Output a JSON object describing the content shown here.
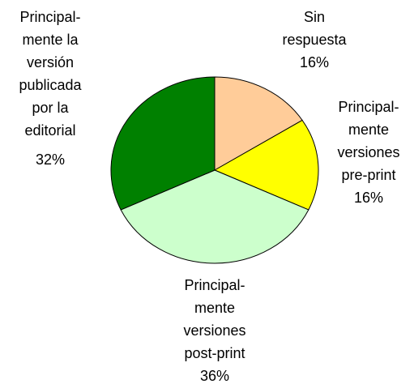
{
  "chart_data": {
    "type": "pie",
    "categories": [
      [
        "Sin",
        "respuesta"
      ],
      [
        "Principal-",
        "mente",
        "versiones",
        "pre-print"
      ],
      [
        "Principal-",
        "mente",
        "versiones",
        "post-print"
      ],
      [
        "Principal-",
        "mente la",
        "versión",
        "publicada",
        "por la",
        "editorial"
      ]
    ],
    "values": [
      16,
      16,
      36,
      32
    ],
    "value_labels": [
      "16%",
      "16%",
      "36%",
      "32%"
    ],
    "colors": [
      "#FFCC99",
      "#FFFF00",
      "#CCFFCC",
      "#008000"
    ]
  }
}
